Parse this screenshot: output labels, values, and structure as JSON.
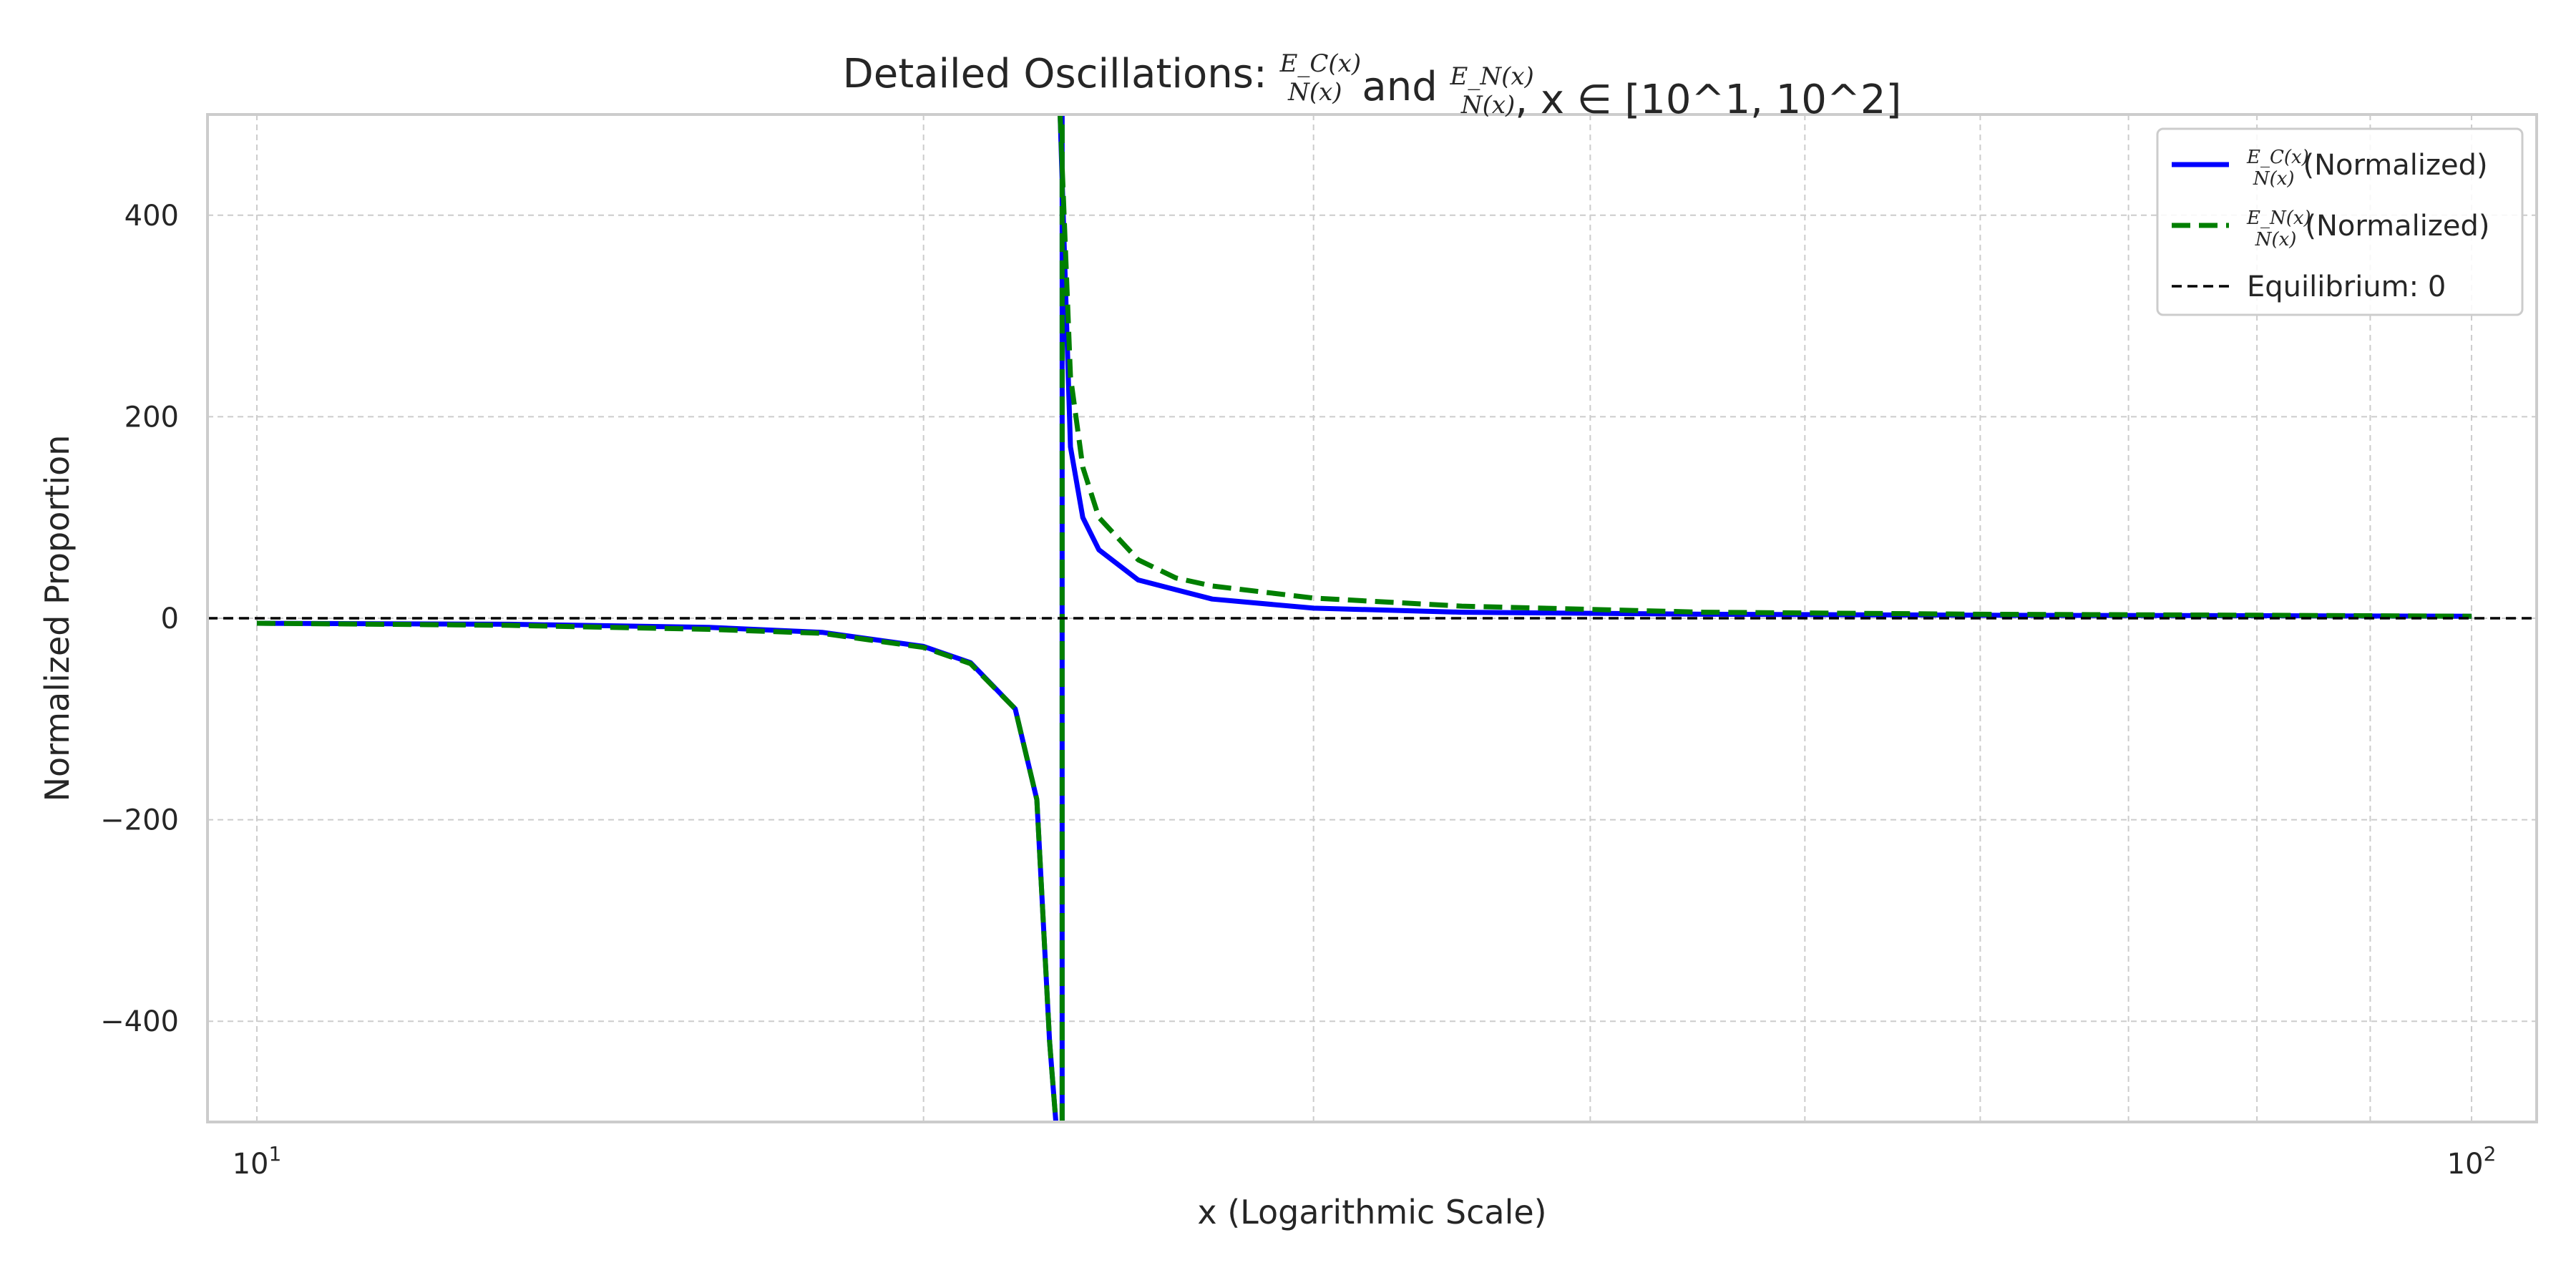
{
  "chart_data": {
    "type": "line",
    "title": {
      "prefix": "Detailed Oscillations: ",
      "frac1_num": "E_C(x)",
      "frac1_den": "N(x)",
      "mid": " and ",
      "frac2_num": "E_N(x)",
      "frac2_den": "N(x)",
      "suffix": ", x ∈ [10^1, 10^2]"
    },
    "xlabel": "x (Logarithmic Scale)",
    "ylabel": "Normalized Proportion",
    "x_scale": "log",
    "xlim": [
      9.5,
      107
    ],
    "ylim": [
      -500,
      500
    ],
    "x_ticks": [
      {
        "value": 10,
        "base": "10",
        "exp": "1"
      },
      {
        "value": 100,
        "base": "10",
        "exp": "2"
      }
    ],
    "y_ticks": [
      {
        "value": -400,
        "label": "−400"
      },
      {
        "value": -200,
        "label": "−200"
      },
      {
        "value": 0,
        "label": "0"
      },
      {
        "value": 200,
        "label": "200"
      },
      {
        "value": 400,
        "label": "400"
      }
    ],
    "grid": true,
    "legend_position": "top-right",
    "asymptote_x": 23.1,
    "series": [
      {
        "name": "(Normalized)",
        "name_num": "E_C(x)",
        "name_den": "N(x)",
        "color": "#0000ff",
        "style": "solid",
        "x": [
          10,
          13,
          16,
          18,
          20,
          21,
          22,
          22.5,
          22.8,
          22.95,
          23.05,
          23.3,
          23.6,
          24,
          25,
          27,
          30,
          35,
          45,
          60,
          80,
          100
        ],
        "y": [
          -5,
          -6,
          -9,
          -14,
          -28,
          -44,
          -90,
          -180,
          -420,
          -500,
          500,
          170,
          100,
          68,
          38,
          19,
          10,
          6,
          4,
          3,
          2.5,
          2
        ]
      },
      {
        "name": "(Normalized)",
        "name_num": "E_N(x)",
        "name_den": "N(x)",
        "color": "#007f00",
        "style": "dashed",
        "x": [
          10,
          13,
          16,
          18,
          20,
          21,
          22,
          22.5,
          22.8,
          22.95,
          23.05,
          23.3,
          23.6,
          24,
          25,
          26,
          27,
          30,
          35,
          45,
          60,
          80,
          100
        ],
        "y": [
          -5,
          -7,
          -11,
          -15,
          -29,
          -45,
          -90,
          -180,
          -420,
          -500,
          500,
          240,
          150,
          100,
          58,
          40,
          32,
          20,
          12,
          6,
          4,
          3,
          2
        ]
      },
      {
        "name": "Equilibrium: 0",
        "color": "#000000",
        "style": "dashed-thin",
        "constant_y": 0
      }
    ]
  }
}
